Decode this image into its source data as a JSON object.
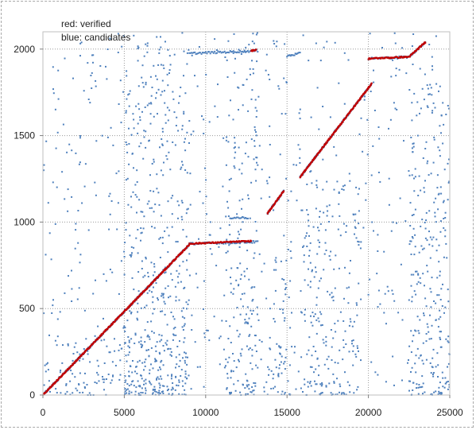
{
  "chart_data": {
    "type": "scatter",
    "title": "",
    "xlabel": "",
    "ylabel": "",
    "xlim": [
      0,
      25000
    ],
    "ylim": [
      0,
      2100
    ],
    "xticks": [
      0,
      5000,
      10000,
      15000,
      20000,
      25000
    ],
    "yticks": [
      0,
      500,
      1000,
      1500,
      2000
    ],
    "xtick_labels": [
      "0",
      "5000",
      "10000",
      "15000",
      "20000",
      "25000"
    ],
    "ytick_labels": [
      "0",
      "500",
      "1000",
      "1500",
      "2000"
    ],
    "grid": "major, dotted",
    "legend_placement": "top-left",
    "annotations": [
      "red:  verified",
      "blue: candidates"
    ],
    "series": [
      {
        "color": "#c00000",
        "segments": [
          {
            "x": [
              0,
              9000
            ],
            "y": [
              0,
              870
            ]
          },
          {
            "x": [
              9000,
              12800
            ],
            "y": [
              875,
              890
            ]
          },
          {
            "x": [
              12800,
              13100
            ],
            "y": [
              1990,
              1995
            ]
          },
          {
            "x": [
              13800,
              14800
            ],
            "y": [
              1050,
              1180
            ]
          },
          {
            "x": [
              15800,
              20200
            ],
            "y": [
              1260,
              1800
            ]
          },
          {
            "x": [
              20000,
              22500
            ],
            "y": [
              1945,
              1955
            ]
          },
          {
            "x": [
              22500,
              23500
            ],
            "y": [
              1955,
              2040
            ]
          }
        ]
      },
      {
        "color": "#4f81bd",
        "segments": [
          {
            "x": [
              0,
              9000
            ],
            "y": [
              0,
              870
            ]
          },
          {
            "x": [
              9000,
              13200
            ],
            "y": [
              875,
              885
            ]
          },
          {
            "x": [
              9000,
              13200
            ],
            "y": [
              1975,
              1990
            ]
          },
          {
            "x": [
              11500,
              12600
            ],
            "y": [
              1025,
              1025
            ]
          },
          {
            "x": [
              13800,
              14800
            ],
            "y": [
              1050,
              1180
            ]
          },
          {
            "x": [
              15000,
              15800
            ],
            "y": [
              1960,
              1975
            ]
          },
          {
            "x": [
              15800,
              20200
            ],
            "y": [
              1260,
              1800
            ]
          },
          {
            "x": [
              20000,
              22500
            ],
            "y": [
              1945,
              1955
            ]
          },
          {
            "x": [
              22500,
              23500
            ],
            "y": [
              1955,
              2040
            ]
          }
        ],
        "clusters": [
          {
            "x": [
              0,
              9000
            ],
            "y": [
              0,
              350
            ],
            "density": 1.0
          },
          {
            "x": [
              5000,
              9000
            ],
            "y": [
              0,
              2100
            ],
            "density": 0.8
          },
          {
            "x": [
              11200,
              13200
            ],
            "y": [
              0,
              2100
            ],
            "density": 0.75
          },
          {
            "x": [
              13800,
              15200
            ],
            "y": [
              0,
              900
            ],
            "density": 0.8
          },
          {
            "x": [
              15800,
              19500
            ],
            "y": [
              0,
              1300
            ],
            "density": 0.75
          },
          {
            "x": [
              22500,
              25000
            ],
            "y": [
              0,
              1800
            ],
            "density": 0.9
          },
          {
            "x": [
              0,
              25000
            ],
            "y": [
              0,
              2100
            ],
            "density": 0.25
          }
        ]
      }
    ]
  }
}
